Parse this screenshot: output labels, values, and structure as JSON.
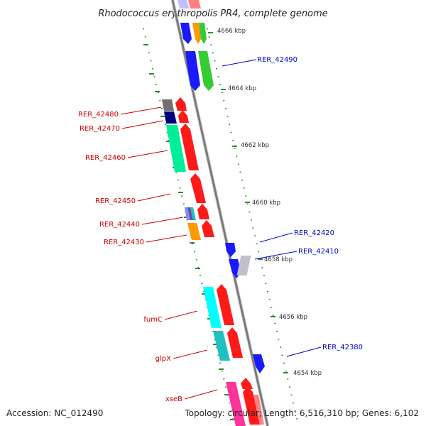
{
  "title": "Rhodococcus erythropolis PR4, complete genome",
  "footer": {
    "accession": "Accession: NC_012490",
    "summary": "Topology: circular; Length: 6,516,310 bp; Genes: 6,102"
  },
  "colors": {
    "backbone": "#888888",
    "tick": "#2e8b2e",
    "reverse_label": "#cc0000",
    "forward_label": "#0000cc"
  },
  "kbp_labels": [
    "4666 kbp",
    "4664 kbp",
    "4662 kbp",
    "4660 kbp",
    "4658 kbp",
    "4656 kbp",
    "4654 kbp"
  ],
  "gene_labels": [
    {
      "text": "RER_42490",
      "strand": "forward"
    },
    {
      "text": "RER_42480",
      "strand": "reverse"
    },
    {
      "text": "RER_42470",
      "strand": "reverse"
    },
    {
      "text": "RER_42460",
      "strand": "reverse"
    },
    {
      "text": "RER_42450",
      "strand": "reverse"
    },
    {
      "text": "RER_42440",
      "strand": "reverse"
    },
    {
      "text": "RER_42430",
      "strand": "reverse"
    },
    {
      "text": "RER_42420",
      "strand": "forward"
    },
    {
      "text": "RER_42410",
      "strand": "forward"
    },
    {
      "text": "fumC",
      "strand": "reverse"
    },
    {
      "text": "glpX",
      "strand": "reverse"
    },
    {
      "text": "RER_42380",
      "strand": "forward"
    },
    {
      "text": "xseB",
      "strand": "reverse"
    }
  ],
  "feature_colors": [
    "#1a1aff",
    "#33cc33",
    "#ff9900",
    "#ff1a1a",
    "#707070",
    "#000080",
    "#00ee99",
    "#00ffff",
    "#20c0c0",
    "#ff3399",
    "#c0c0c8",
    "#8888ff"
  ]
}
